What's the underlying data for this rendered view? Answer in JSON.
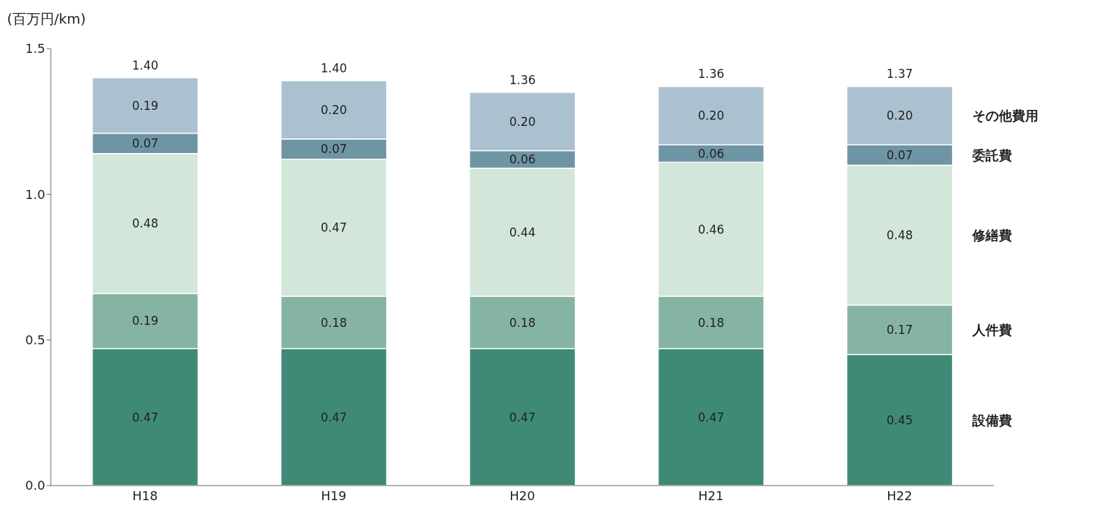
{
  "chart_data": {
    "type": "bar",
    "stacked": true,
    "ylabel": "(百万円/km)",
    "categories": [
      "H18",
      "H19",
      "H20",
      "H21",
      "H22"
    ],
    "series": [
      {
        "name": "設備費",
        "color": "#3f8a76",
        "values": [
          0.47,
          0.47,
          0.47,
          0.47,
          0.45
        ],
        "value_labels": [
          "0.47",
          "0.47",
          "0.47",
          "0.47",
          "0.45"
        ]
      },
      {
        "name": "人件費",
        "color": "#86b4a2",
        "values": [
          0.19,
          0.18,
          0.18,
          0.18,
          0.17
        ],
        "value_labels": [
          "0.19",
          "0.18",
          "0.18",
          "0.18",
          "0.17"
        ]
      },
      {
        "name": "修繕費",
        "color": "#d3e6da",
        "values": [
          0.48,
          0.47,
          0.44,
          0.46,
          0.48
        ],
        "value_labels": [
          "0.48",
          "0.47",
          "0.44",
          "0.46",
          "0.48"
        ]
      },
      {
        "name": "委託費",
        "color": "#6e95a4",
        "values": [
          0.07,
          0.07,
          0.06,
          0.06,
          0.07
        ],
        "value_labels": [
          "0.07",
          "0.07",
          "0.06",
          "0.06",
          "0.07"
        ]
      },
      {
        "name": "その他費用",
        "color": "#abc1cf",
        "values": [
          0.19,
          0.2,
          0.2,
          0.2,
          0.2
        ],
        "value_labels": [
          "0.19",
          "0.20",
          "0.20",
          "0.20",
          "0.20"
        ]
      }
    ],
    "totals": [
      "1.40",
      "1.40",
      "1.36",
      "1.36",
      "1.37"
    ],
    "ylim": [
      0,
      1.5
    ],
    "yticks": [
      {
        "value": 0,
        "label": "0.0"
      },
      {
        "value": 0.5,
        "label": "0.5"
      },
      {
        "value": 1,
        "label": "1.0"
      },
      {
        "value": 1.5,
        "label": "1.5"
      }
    ],
    "grid": false
  }
}
